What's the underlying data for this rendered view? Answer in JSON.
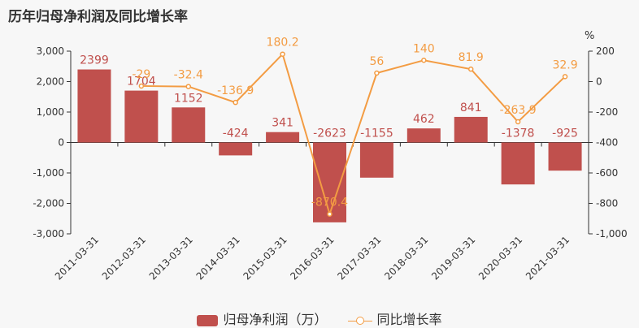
{
  "title": "历年归母净利润及同比增长率",
  "chart_data": {
    "type": "bar",
    "categories": [
      "2011-03-31",
      "2012-03-31",
      "2013-03-31",
      "2014-03-31",
      "2015-03-31",
      "2016-03-31",
      "2017-03-31",
      "2018-03-31",
      "2019-03-31",
      "2020-03-31",
      "2021-03-31"
    ],
    "series": [
      {
        "name": "归母净利润（万）",
        "type": "bar",
        "color": "#c0504d",
        "values": [
          2399,
          1704,
          1152,
          -424,
          341,
          -2623,
          -1155,
          462,
          841,
          -1378,
          -925
        ],
        "labels": [
          "2399",
          "1704",
          "1152",
          "-424",
          "341",
          "-2623",
          "-1155",
          "462",
          "841",
          "-1378",
          "-925"
        ]
      },
      {
        "name": "同比增长率",
        "type": "line",
        "color": "#f39c43",
        "values": [
          null,
          -29,
          -32.4,
          -136.9,
          180.2,
          -870.4,
          56,
          140,
          81.9,
          -263.9,
          32.9
        ],
        "labels": [
          "",
          "-29",
          "-32.4",
          "-136.9",
          "180.2",
          "-870.4",
          "56",
          "140",
          "81.9",
          "-263.9",
          "32.9"
        ]
      }
    ],
    "y_left": {
      "ylim": [
        -3000,
        3000
      ],
      "ticks": [
        "3,000",
        "2,000",
        "1,000",
        "0",
        "-1,000",
        "-2,000",
        "-3,000"
      ]
    },
    "y_right": {
      "unit": "%",
      "ylim": [
        -1000,
        200
      ],
      "ticks": [
        "200",
        "0",
        "-200",
        "-400",
        "-600",
        "-800",
        "-1,000"
      ]
    },
    "grid": false,
    "legend": "bottom"
  },
  "legend": {
    "bar_label": "归母净利润（万）",
    "line_label": "同比增长率"
  }
}
